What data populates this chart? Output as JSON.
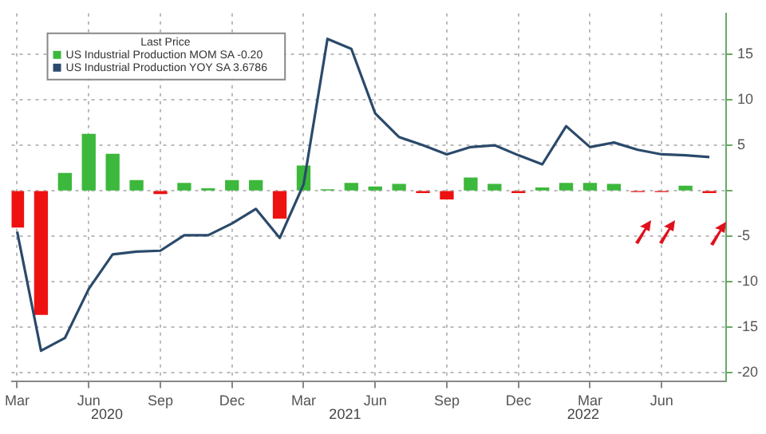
{
  "chart_data": {
    "type": "bar",
    "legend_title": "Last Price",
    "legend": "top left",
    "grid": true,
    "x": [
      "2020-03",
      "2020-04",
      "2020-05",
      "2020-06",
      "2020-07",
      "2020-08",
      "2020-09",
      "2020-10",
      "2020-11",
      "2020-12",
      "2021-01",
      "2021-02",
      "2021-03",
      "2021-04",
      "2021-05",
      "2021-06",
      "2021-07",
      "2021-08",
      "2021-09",
      "2021-10",
      "2021-11",
      "2021-12",
      "2022-01",
      "2022-02",
      "2022-03",
      "2022-04",
      "2022-05",
      "2022-06",
      "2022-07",
      "2022-08"
    ],
    "series": [
      {
        "name": "US Industrial Production MOM SA -0.20",
        "color": "#3cb83c",
        "colors": [
          "#ee1111",
          "#ee1111",
          "#3cb83c",
          "#3cb83c",
          "#3cb83c",
          "#3cb83c",
          "#ee1111",
          "#3cb83c",
          "#3cb83c",
          "#3cb83c",
          "#3cb83c",
          "#ee1111",
          "#3cb83c",
          "#3cb83c",
          "#3cb83c",
          "#3cb83c",
          "#3cb83c",
          "#ee1111",
          "#ee1111",
          "#3cb83c",
          "#3cb83c",
          "#ee1111",
          "#3cb83c",
          "#3cb83c",
          "#3cb83c",
          "#3cb83c",
          "#ee1111",
          "#ee1111",
          "#3cb83c",
          "#ee1111"
        ],
        "values": [
          -4,
          -13.6,
          1.9,
          6.2,
          4,
          1.1,
          -0.3,
          0.8,
          0.2,
          1.1,
          1.1,
          -3,
          2.7,
          0.1,
          0.8,
          0.4,
          0.7,
          -0.2,
          -0.9,
          1.4,
          0.7,
          -0.2,
          0.3,
          0.8,
          0.8,
          0.7,
          -0.1,
          -0.1,
          0.5,
          -0.2
        ]
      },
      {
        "type": "line",
        "name": "US Industrial Production YOY SA 3.6786",
        "color": "#2b4a6b",
        "values": [
          -4.5,
          -17.6,
          -16.2,
          -10.8,
          -7,
          -6.7,
          -6.6,
          -4.9,
          -4.9,
          -3.6,
          -2,
          -5.2,
          0.7,
          16.7,
          15.6,
          8.5,
          5.9,
          5,
          4,
          4.8,
          5,
          3.9,
          2.9,
          7.1,
          4.8,
          5.3,
          4.5,
          4,
          3.9,
          3.7
        ]
      }
    ],
    "xlim": [
      "2020-02-24",
      "2022-08-22"
    ],
    "xticks": [
      {
        "value": "2020-03",
        "label": "Mar"
      },
      {
        "value": "2020-06",
        "label": "Jun"
      },
      {
        "value": "2020-09",
        "label": "Sep"
      },
      {
        "value": "2020-12",
        "label": "Dec"
      },
      {
        "value": "2021-03",
        "label": "Mar"
      },
      {
        "value": "2021-06",
        "label": "Jun"
      },
      {
        "value": "2021-09",
        "label": "Sep"
      },
      {
        "value": "2021-12",
        "label": "Dec"
      },
      {
        "value": "2022-03",
        "label": "Mar"
      },
      {
        "value": "2022-06",
        "label": "Jun"
      }
    ],
    "ylim": [
      -21,
      19.5
    ],
    "yticks": [
      -20,
      -15,
      -10,
      -5,
      {
        "value": 0,
        "label": null
      },
      5,
      10,
      15
    ],
    "annotations": [
      "2020",
      "2021",
      "2022"
    ]
  }
}
